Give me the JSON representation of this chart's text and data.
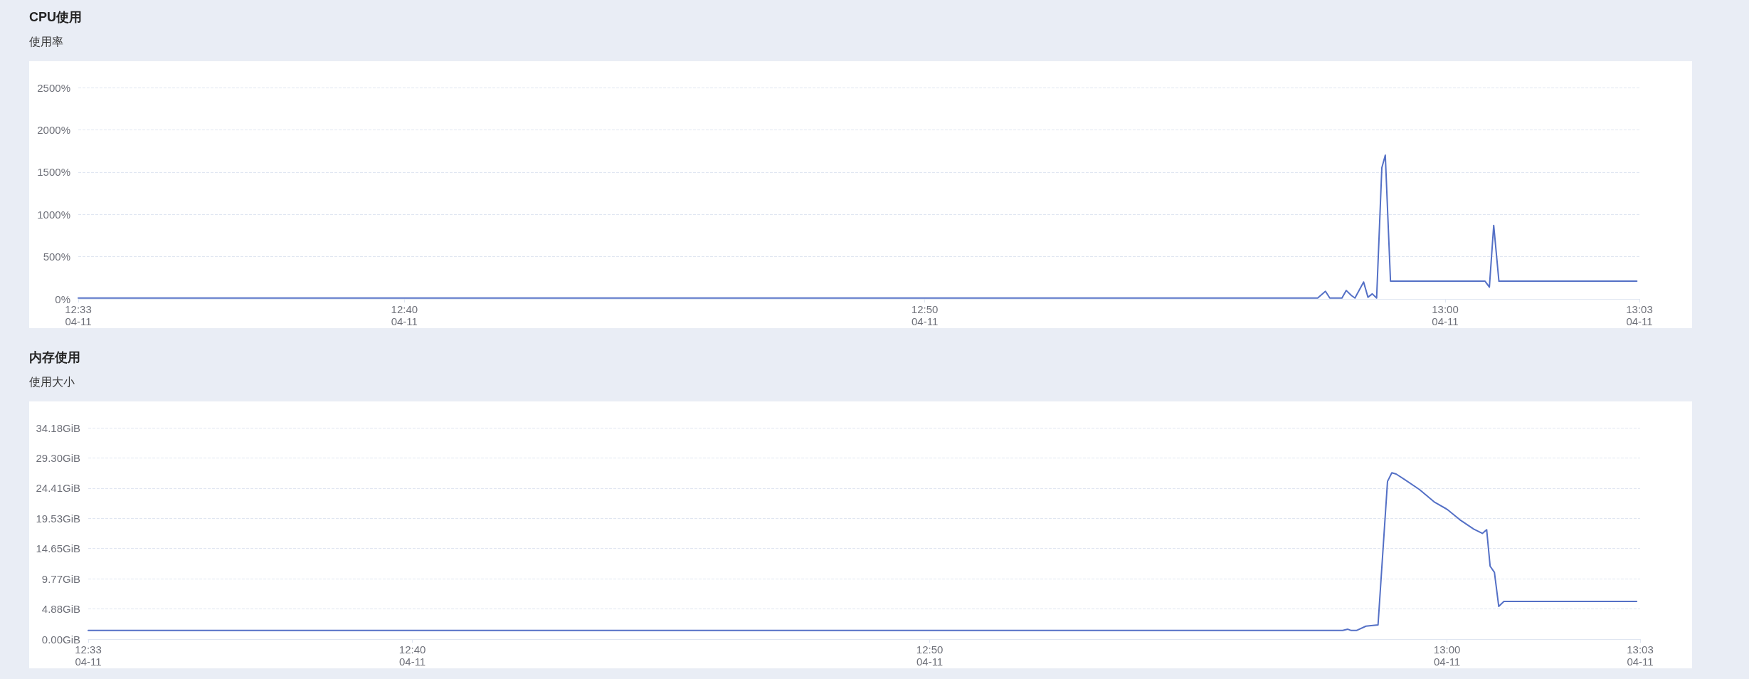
{
  "chart_data": [
    {
      "type": "line",
      "title": "CPU使用",
      "subtitle": "使用率",
      "color": "#5470c6",
      "grid": "y",
      "x": [
        "--04-11T12:33:44",
        "--04-11T12:38:44",
        "--04-11T12:43:44",
        "--04-11T12:48:44",
        "--04-11T12:53:44",
        "--04-11T12:56:34",
        "--04-11T12:57:33",
        "--04-11T12:57:42",
        "--04-11T12:57:47",
        "--04-11T12:58:01",
        "--04-11T12:58:06",
        "--04-11T12:58:12",
        "--04-11T12:58:16",
        "--04-11T12:58:26",
        "--04-11T12:58:31",
        "--04-11T12:58:36",
        "--04-11T12:58:41",
        "--04-11T12:58:47",
        "--04-11T12:58:51",
        "--04-11T12:58:57",
        "--04-11T12:59:30",
        "--04-11T13:00:00",
        "--04-11T13:00:30",
        "--04-11T13:00:46",
        "--04-11T13:00:51",
        "--04-11T13:00:56",
        "--04-11T13:01:02",
        "--04-11T13:01:30",
        "--04-11T13:02:00",
        "--04-11T13:02:30",
        "--04-11T13:03:00",
        "--04-11T13:03:41"
      ],
      "values": [
        10,
        10,
        10,
        10,
        10,
        10,
        10,
        90,
        10,
        10,
        100,
        40,
        10,
        200,
        20,
        60,
        10,
        1550,
        1700,
        210,
        210,
        210,
        210,
        210,
        140,
        870,
        210,
        210,
        210,
        210,
        210,
        210
      ],
      "xlim": [
        "--04-11T12:33:44",
        "--04-11T13:03:44"
      ],
      "xticks": [
        {
          "value": "--04-11T12:33:44",
          "label": "12:33\n04-11"
        },
        {
          "value": "--04-11T12:40",
          "label": "12:40\n04-11"
        },
        {
          "value": "--04-11T12:50",
          "label": "12:50\n04-11"
        },
        {
          "value": "--04-11T13:00",
          "label": "13:00\n04-11"
        },
        {
          "value": "--04-11T13:03:44",
          "label": "13:03\n04-11"
        }
      ],
      "ylim": [
        0,
        2500
      ],
      "yticks": [
        {
          "value": 0,
          "label": "0%"
        },
        {
          "value": 500,
          "label": "500%"
        },
        {
          "value": 1000,
          "label": "1000%"
        },
        {
          "value": 1500,
          "label": "1500%"
        },
        {
          "value": 2000,
          "label": "2000%"
        },
        {
          "value": 2500,
          "label": "2500%"
        }
      ]
    },
    {
      "type": "line",
      "title": "内存使用",
      "subtitle": "使用大小",
      "color": "#5470c6",
      "grid": "y",
      "x": [
        "--04-11T12:33:44",
        "--04-11T12:56:31",
        "--04-11T12:57:59",
        "--04-11T12:58:05",
        "--04-11T12:58:09",
        "--04-11T12:58:15",
        "--04-11T12:58:26",
        "--04-11T12:58:40",
        "--04-11T12:58:51",
        "--04-11T12:58:56",
        "--04-11T12:59:01",
        "--04-11T12:59:11",
        "--04-11T12:59:28",
        "--04-11T12:59:45",
        "--04-11T13:00:00",
        "--04-11T13:00:15",
        "--04-11T13:00:31",
        "--04-11T13:00:41",
        "--04-11T13:00:46",
        "--04-11T13:00:50",
        "--04-11T13:00:55",
        "--04-11T13:01:00",
        "--04-11T13:01:06",
        "--04-11T13:03:40"
      ],
      "values": [
        1.4,
        1.4,
        1.4,
        1.6,
        1.4,
        1.4,
        2.1,
        2.3,
        25.5,
        26.9,
        26.7,
        25.8,
        24.2,
        22.2,
        21.0,
        19.3,
        17.8,
        17.1,
        17.7,
        11.8,
        10.8,
        5.3,
        6.1,
        6.1
      ],
      "xlim": [
        "--04-11T12:33:44",
        "--04-11T13:03:44"
      ],
      "xticks": [
        {
          "value": "--04-11T12:33:44",
          "label": "12:33\n04-11"
        },
        {
          "value": "--04-11T12:40",
          "label": "12:40\n04-11"
        },
        {
          "value": "--04-11T12:50",
          "label": "12:50\n04-11"
        },
        {
          "value": "--04-11T13:00",
          "label": "13:00\n04-11"
        },
        {
          "value": "--04-11T13:03:44",
          "label": "13:03\n04-11"
        }
      ],
      "ylim": [
        0,
        34.18
      ],
      "yticks": [
        {
          "value": 0,
          "label": "0.00GiB"
        },
        {
          "value": 4.88,
          "label": "4.88GiB"
        },
        {
          "value": 9.77,
          "label": "9.77GiB"
        },
        {
          "value": 14.65,
          "label": "14.65GiB"
        },
        {
          "value": 19.53,
          "label": "19.53GiB"
        },
        {
          "value": 24.41,
          "label": "24.41GiB"
        },
        {
          "value": 29.3,
          "label": "29.30GiB"
        },
        {
          "value": 34.18,
          "label": "34.18GiB"
        }
      ]
    }
  ]
}
